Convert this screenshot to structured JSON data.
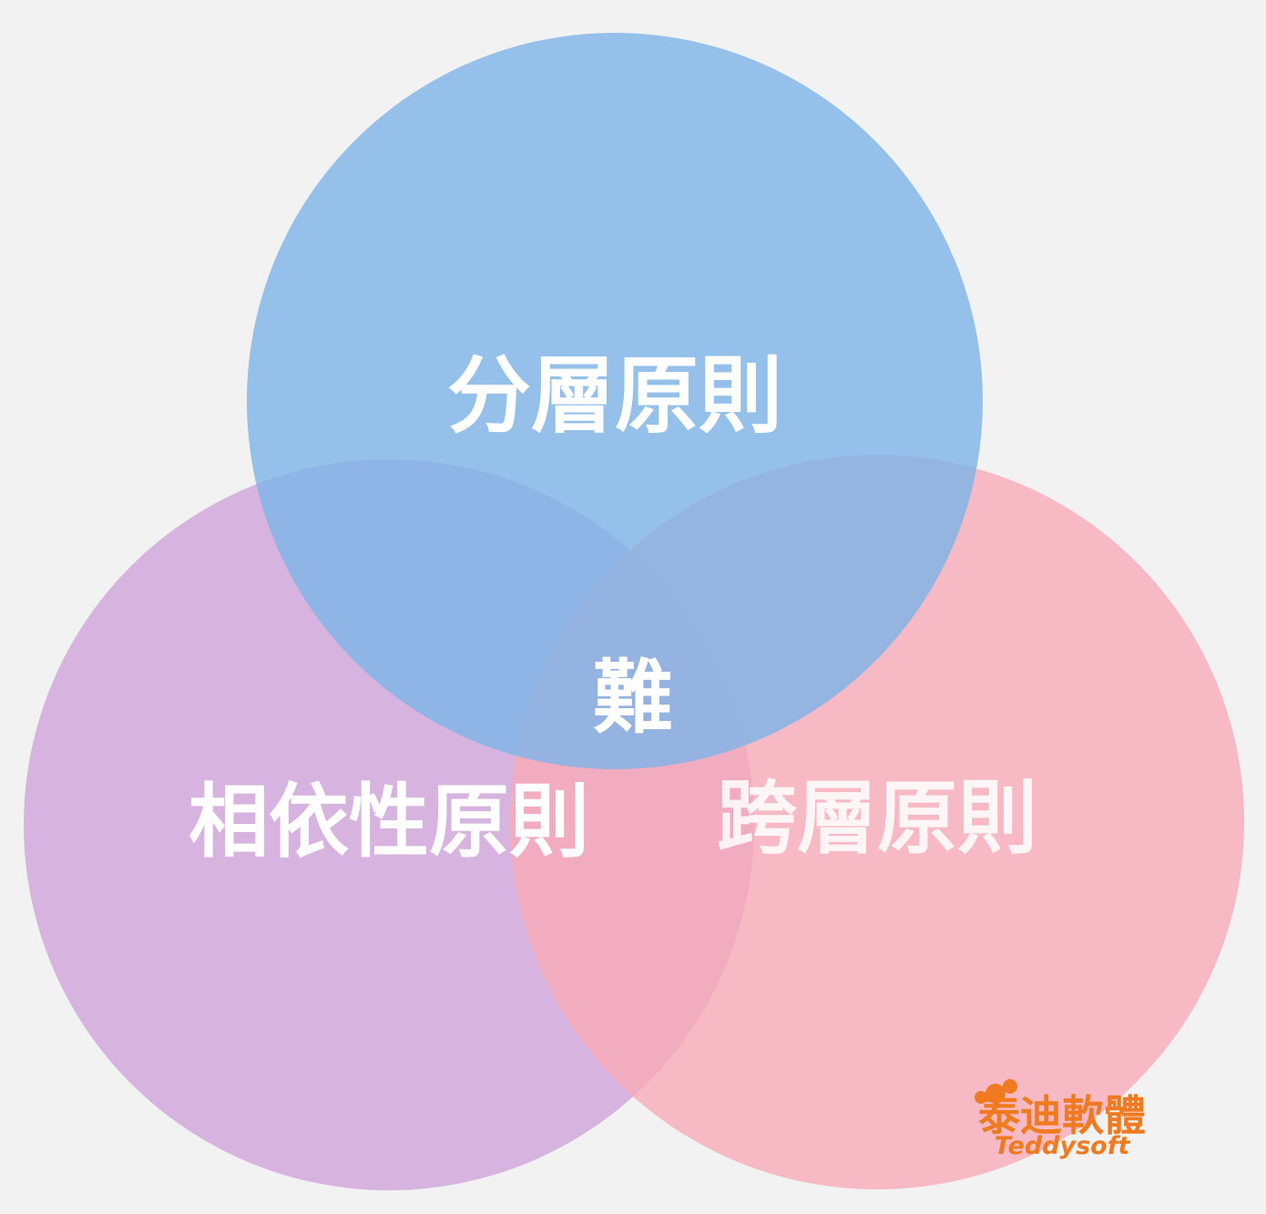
{
  "diagram": {
    "circles": [
      {
        "id": "layering",
        "label": "分層原則",
        "color": "#7fb5e8"
      },
      {
        "id": "dependency",
        "label": "相依性原則",
        "color": "#d2a9dc"
      },
      {
        "id": "cross_layer",
        "label": "跨層原則",
        "color": "#f8aab6"
      }
    ],
    "center_label": "難"
  },
  "logo": {
    "chinese": "泰迪軟體",
    "english": "Teddysoft",
    "color": "#f07a1f"
  }
}
